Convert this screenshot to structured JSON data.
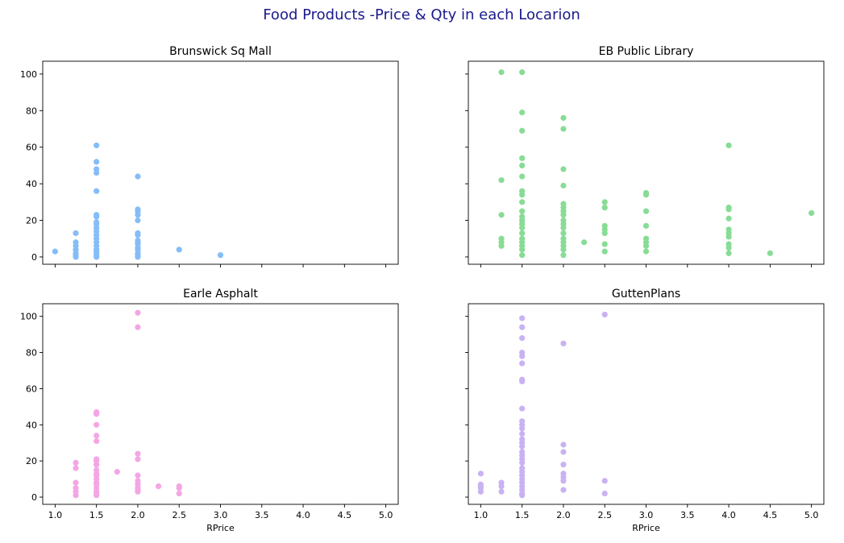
{
  "chart_data": {
    "title": "Food Products -Price & Qty in each Locarion",
    "title_color": "#1a1a8c",
    "type": "scatter",
    "xlim": [
      0.85,
      5.15
    ],
    "ylim": [
      -4,
      107
    ],
    "xticks": [
      "1.0",
      "1.5",
      "2.0",
      "2.5",
      "3.0",
      "3.5",
      "4.0",
      "4.5",
      "5.0"
    ],
    "xtick_values": [
      1.0,
      1.5,
      2.0,
      2.5,
      3.0,
      3.5,
      4.0,
      4.5,
      5.0
    ],
    "yticks": [
      "0",
      "20",
      "40",
      "60",
      "80",
      "100"
    ],
    "ytick_values": [
      0,
      20,
      40,
      60,
      80,
      100
    ],
    "xlabel": "RPrice",
    "grid": false,
    "sharex": true,
    "sharey": true,
    "subplots": [
      {
        "title": "Brunswick Sq Mall",
        "color": "#85bdf7",
        "points": [
          [
            1.0,
            3
          ],
          [
            1.25,
            13
          ],
          [
            1.25,
            8
          ],
          [
            1.25,
            6
          ],
          [
            1.25,
            4
          ],
          [
            1.25,
            2
          ],
          [
            1.25,
            1
          ],
          [
            1.25,
            0
          ],
          [
            1.5,
            61
          ],
          [
            1.5,
            52
          ],
          [
            1.5,
            48
          ],
          [
            1.5,
            46
          ],
          [
            1.5,
            36
          ],
          [
            1.5,
            23
          ],
          [
            1.5,
            22
          ],
          [
            1.5,
            19
          ],
          [
            1.5,
            18
          ],
          [
            1.5,
            16
          ],
          [
            1.5,
            14
          ],
          [
            1.5,
            12
          ],
          [
            1.5,
            10
          ],
          [
            1.5,
            8
          ],
          [
            1.5,
            6
          ],
          [
            1.5,
            4
          ],
          [
            1.5,
            3
          ],
          [
            1.5,
            2
          ],
          [
            1.5,
            1
          ],
          [
            1.5,
            0
          ],
          [
            2.0,
            44
          ],
          [
            2.0,
            26
          ],
          [
            2.0,
            25
          ],
          [
            2.0,
            23
          ],
          [
            2.0,
            20
          ],
          [
            2.0,
            13
          ],
          [
            2.0,
            12
          ],
          [
            2.0,
            9
          ],
          [
            2.0,
            8
          ],
          [
            2.0,
            7
          ],
          [
            2.0,
            5
          ],
          [
            2.0,
            4
          ],
          [
            2.0,
            2
          ],
          [
            2.0,
            1
          ],
          [
            2.0,
            0
          ],
          [
            2.5,
            4
          ],
          [
            3.0,
            1
          ]
        ]
      },
      {
        "title": "EB Public Library",
        "color": "#88dc95",
        "points": [
          [
            1.25,
            101
          ],
          [
            1.25,
            42
          ],
          [
            1.25,
            23
          ],
          [
            1.25,
            10
          ],
          [
            1.25,
            8
          ],
          [
            1.25,
            6
          ],
          [
            1.5,
            101
          ],
          [
            1.5,
            79
          ],
          [
            1.5,
            69
          ],
          [
            1.5,
            54
          ],
          [
            1.5,
            50
          ],
          [
            1.5,
            44
          ],
          [
            1.5,
            36
          ],
          [
            1.5,
            34
          ],
          [
            1.5,
            30
          ],
          [
            1.5,
            25
          ],
          [
            1.5,
            22
          ],
          [
            1.5,
            20
          ],
          [
            1.5,
            18
          ],
          [
            1.5,
            16
          ],
          [
            1.5,
            13
          ],
          [
            1.5,
            10
          ],
          [
            1.5,
            8
          ],
          [
            1.5,
            6
          ],
          [
            1.5,
            4
          ],
          [
            1.5,
            1
          ],
          [
            2.0,
            76
          ],
          [
            2.0,
            70
          ],
          [
            2.0,
            48
          ],
          [
            2.0,
            39
          ],
          [
            2.0,
            29
          ],
          [
            2.0,
            27
          ],
          [
            2.0,
            25
          ],
          [
            2.0,
            23
          ],
          [
            2.0,
            20
          ],
          [
            2.0,
            18
          ],
          [
            2.0,
            16
          ],
          [
            2.0,
            13
          ],
          [
            2.0,
            10
          ],
          [
            2.0,
            8
          ],
          [
            2.0,
            6
          ],
          [
            2.0,
            4
          ],
          [
            2.0,
            1
          ],
          [
            2.25,
            8
          ],
          [
            2.5,
            30
          ],
          [
            2.5,
            27
          ],
          [
            2.5,
            17
          ],
          [
            2.5,
            15
          ],
          [
            2.5,
            13
          ],
          [
            2.5,
            7
          ],
          [
            2.5,
            3
          ],
          [
            3.0,
            35
          ],
          [
            3.0,
            34
          ],
          [
            3.0,
            25
          ],
          [
            3.0,
            17
          ],
          [
            3.0,
            10
          ],
          [
            3.0,
            8
          ],
          [
            3.0,
            6
          ],
          [
            3.0,
            3
          ],
          [
            4.0,
            61
          ],
          [
            4.0,
            27
          ],
          [
            4.0,
            26
          ],
          [
            4.0,
            21
          ],
          [
            4.0,
            15
          ],
          [
            4.0,
            13
          ],
          [
            4.0,
            11
          ],
          [
            4.0,
            7
          ],
          [
            4.0,
            5
          ],
          [
            4.0,
            2
          ],
          [
            4.5,
            2
          ],
          [
            5.0,
            24
          ]
        ]
      },
      {
        "title": "Earle Asphalt",
        "color": "#f4a6e4",
        "points": [
          [
            1.25,
            19
          ],
          [
            1.25,
            16
          ],
          [
            1.25,
            8
          ],
          [
            1.25,
            5
          ],
          [
            1.25,
            3
          ],
          [
            1.25,
            1
          ],
          [
            1.5,
            47
          ],
          [
            1.5,
            46
          ],
          [
            1.5,
            40
          ],
          [
            1.5,
            34
          ],
          [
            1.5,
            31
          ],
          [
            1.5,
            21
          ],
          [
            1.5,
            20
          ],
          [
            1.5,
            18
          ],
          [
            1.5,
            15
          ],
          [
            1.5,
            13
          ],
          [
            1.5,
            12
          ],
          [
            1.5,
            10
          ],
          [
            1.5,
            8
          ],
          [
            1.5,
            7
          ],
          [
            1.5,
            5
          ],
          [
            1.5,
            3
          ],
          [
            1.5,
            2
          ],
          [
            1.5,
            1
          ],
          [
            1.75,
            14
          ],
          [
            2.0,
            102
          ],
          [
            2.0,
            94
          ],
          [
            2.0,
            24
          ],
          [
            2.0,
            21
          ],
          [
            2.0,
            12
          ],
          [
            2.0,
            9
          ],
          [
            2.0,
            7
          ],
          [
            2.0,
            5
          ],
          [
            2.0,
            4
          ],
          [
            2.0,
            3
          ],
          [
            2.25,
            6
          ],
          [
            2.5,
            6
          ],
          [
            2.5,
            5
          ],
          [
            2.5,
            2
          ]
        ]
      },
      {
        "title": "GuttenPlans",
        "color": "#c9b2f2",
        "points": [
          [
            1.0,
            13
          ],
          [
            1.0,
            7
          ],
          [
            1.0,
            6
          ],
          [
            1.0,
            5
          ],
          [
            1.0,
            3
          ],
          [
            1.25,
            8
          ],
          [
            1.25,
            6
          ],
          [
            1.25,
            3
          ],
          [
            1.5,
            99
          ],
          [
            1.5,
            94
          ],
          [
            1.5,
            88
          ],
          [
            1.5,
            80
          ],
          [
            1.5,
            78
          ],
          [
            1.5,
            74
          ],
          [
            1.5,
            65
          ],
          [
            1.5,
            64
          ],
          [
            1.5,
            49
          ],
          [
            1.5,
            42
          ],
          [
            1.5,
            40
          ],
          [
            1.5,
            38
          ],
          [
            1.5,
            35
          ],
          [
            1.5,
            32
          ],
          [
            1.5,
            30
          ],
          [
            1.5,
            28
          ],
          [
            1.5,
            25
          ],
          [
            1.5,
            23
          ],
          [
            1.5,
            21
          ],
          [
            1.5,
            19
          ],
          [
            1.5,
            16
          ],
          [
            1.5,
            14
          ],
          [
            1.5,
            12
          ],
          [
            1.5,
            10
          ],
          [
            1.5,
            8
          ],
          [
            1.5,
            6
          ],
          [
            1.5,
            4
          ],
          [
            1.5,
            2
          ],
          [
            1.5,
            1
          ],
          [
            2.0,
            85
          ],
          [
            2.0,
            29
          ],
          [
            2.0,
            25
          ],
          [
            2.0,
            18
          ],
          [
            2.0,
            13
          ],
          [
            2.0,
            11
          ],
          [
            2.0,
            9
          ],
          [
            2.0,
            4
          ],
          [
            2.5,
            101
          ],
          [
            2.5,
            9
          ],
          [
            2.5,
            2
          ]
        ]
      }
    ]
  }
}
